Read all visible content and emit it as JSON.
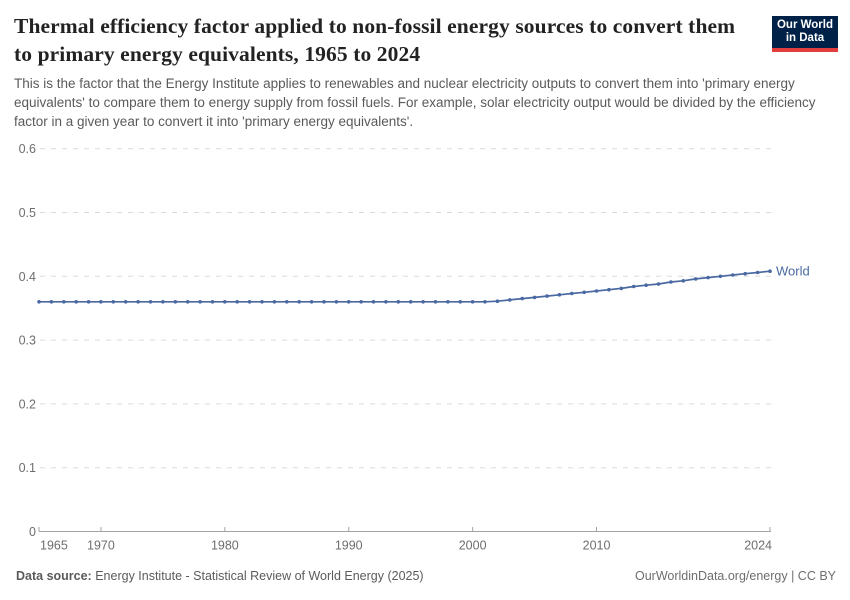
{
  "header": {
    "title": "Thermal efficiency factor applied to non-fossil energy sources to convert them to primary energy equivalents, 1965 to 2024",
    "subtitle": "This is the factor that the Energy Institute applies to renewables and nuclear electricity outputs to convert them into 'primary energy equivalents' to compare them to energy supply from fossil fuels. For example, solar electricity output would be divided by the efficiency factor in a given year to convert it into 'primary energy equivalents'.",
    "logo": {
      "line1": "Our World",
      "line2": "in Data",
      "bg_color": "#002147",
      "stripe_color": "#e13d3d"
    }
  },
  "chart_data": {
    "type": "line",
    "title": "Thermal efficiency factor applied to non-fossil energy sources to convert them to primary energy equivalents",
    "xlabel": "",
    "ylabel": "",
    "xlim": [
      1965,
      2024
    ],
    "ylim": [
      0,
      0.6
    ],
    "grid": "horizontal dashed",
    "legend_position": "end-of-line label",
    "x_ticks": [
      1965,
      1970,
      1980,
      1990,
      2000,
      2010,
      2024
    ],
    "y_ticks": [
      0,
      0.1,
      0.2,
      0.3,
      0.4,
      0.5,
      0.6
    ],
    "y_tick_labels": [
      "0",
      "0.1",
      "0.2",
      "0.3",
      "0.4",
      "0.5",
      "0.6"
    ],
    "series": [
      {
        "name": "World",
        "color": "#4a69a2",
        "x": [
          1965,
          1966,
          1967,
          1968,
          1969,
          1970,
          1971,
          1972,
          1973,
          1974,
          1975,
          1976,
          1977,
          1978,
          1979,
          1980,
          1981,
          1982,
          1983,
          1984,
          1985,
          1986,
          1987,
          1988,
          1989,
          1990,
          1991,
          1992,
          1993,
          1994,
          1995,
          1996,
          1997,
          1998,
          1999,
          2000,
          2001,
          2002,
          2003,
          2004,
          2005,
          2006,
          2007,
          2008,
          2009,
          2010,
          2011,
          2012,
          2013,
          2014,
          2015,
          2016,
          2017,
          2018,
          2019,
          2020,
          2021,
          2022,
          2023,
          2024
        ],
        "values": [
          0.36,
          0.36,
          0.36,
          0.36,
          0.36,
          0.36,
          0.36,
          0.36,
          0.36,
          0.36,
          0.36,
          0.36,
          0.36,
          0.36,
          0.36,
          0.36,
          0.36,
          0.36,
          0.36,
          0.36,
          0.36,
          0.36,
          0.36,
          0.36,
          0.36,
          0.36,
          0.36,
          0.36,
          0.36,
          0.36,
          0.36,
          0.36,
          0.36,
          0.36,
          0.36,
          0.36,
          0.36,
          0.361,
          0.363,
          0.365,
          0.367,
          0.369,
          0.371,
          0.373,
          0.375,
          0.377,
          0.379,
          0.381,
          0.384,
          0.386,
          0.388,
          0.391,
          0.393,
          0.396,
          0.398,
          0.4,
          0.402,
          0.404,
          0.406,
          0.408
        ]
      }
    ]
  },
  "footer": {
    "datasource_label": "Data source:",
    "datasource_value": " Energy Institute - Statistical Review of World Energy (2025)",
    "credit": "OurWorldinData.org/energy | CC BY"
  }
}
